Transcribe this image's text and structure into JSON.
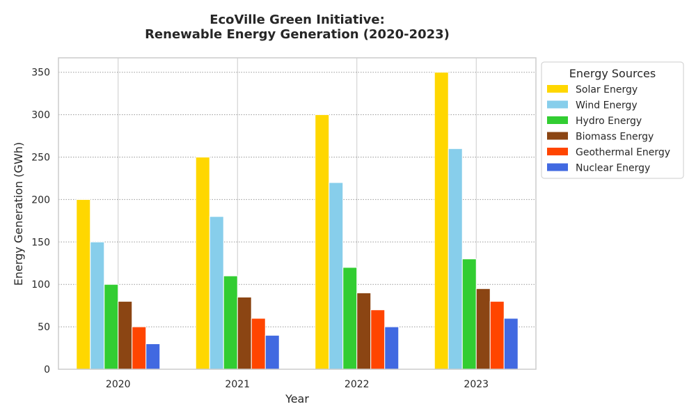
{
  "chart_data": {
    "type": "bar",
    "title_line1": "EcoVille Green Initiative:",
    "title_line2": "Renewable Energy Generation (2020-2023)",
    "xlabel": "Year",
    "ylabel": "Energy Generation (GWh)",
    "categories": [
      "2020",
      "2021",
      "2022",
      "2023"
    ],
    "ylim": [
      0,
      367
    ],
    "yticks": [
      0,
      50,
      100,
      150,
      200,
      250,
      300,
      350
    ],
    "grid": true,
    "legend": {
      "title": "Energy Sources",
      "placement": "outside-top-right"
    },
    "series": [
      {
        "name": "Solar Energy",
        "color": "#FFD700",
        "values": [
          200,
          250,
          300,
          350
        ]
      },
      {
        "name": "Wind Energy",
        "color": "#87CEEB",
        "values": [
          150,
          180,
          220,
          260
        ]
      },
      {
        "name": "Hydro Energy",
        "color": "#32CD32",
        "values": [
          100,
          110,
          120,
          130
        ]
      },
      {
        "name": "Biomass Energy",
        "color": "#8B4513",
        "values": [
          80,
          85,
          90,
          95
        ]
      },
      {
        "name": "Geothermal Energy",
        "color": "#FF4500",
        "values": [
          50,
          60,
          70,
          80
        ]
      },
      {
        "name": "Nuclear Energy",
        "color": "#4169E1",
        "values": [
          30,
          40,
          50,
          60
        ]
      }
    ]
  }
}
